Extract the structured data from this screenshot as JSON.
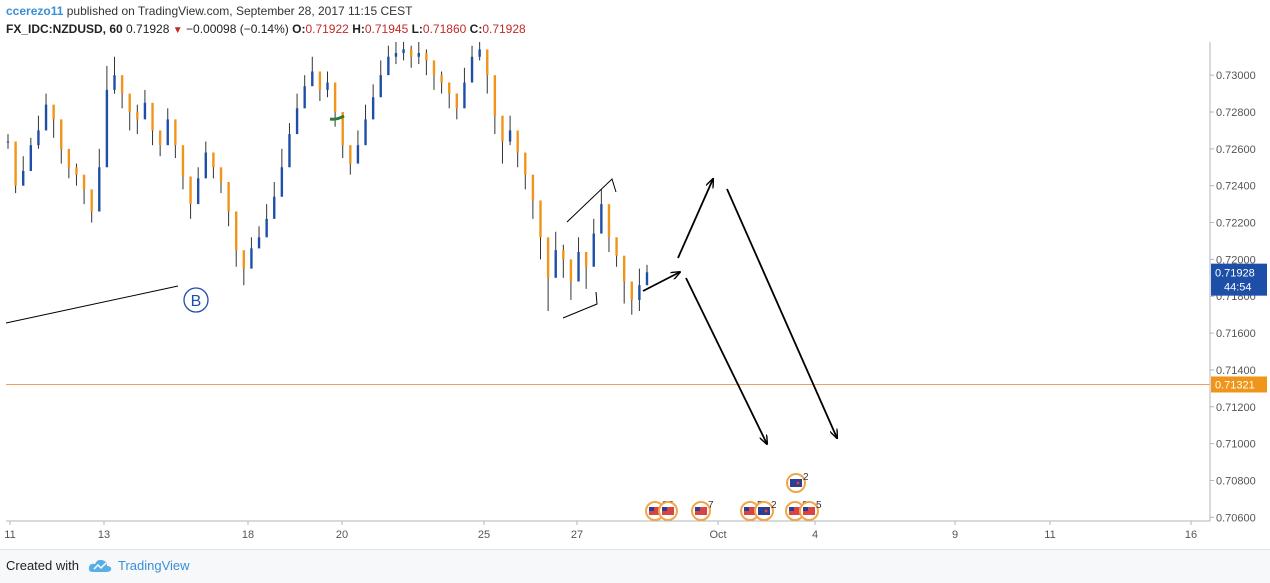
{
  "header": {
    "author": "ccerezo11",
    "published": "published on TradingView.com, September 28, 2017 11:15 CEST",
    "symbol": "FX_IDC:NZDUSD, 60",
    "last": "0.71928",
    "change": "−0.00098 (−0.14%)",
    "open_label": "O:",
    "open": "0.71922",
    "high_label": "H:",
    "high": "0.71945",
    "low_label": "L:",
    "low": "0.71860",
    "close_label": "C:",
    "close": "0.71928"
  },
  "footer": {
    "created": "Created with",
    "brand": "TradingView"
  },
  "chart_data": {
    "type": "candlestick",
    "ylim": [
      0.7058,
      0.7318
    ],
    "y_ticks": [
      "0.73000",
      "0.72800",
      "0.72600",
      "0.72400",
      "0.72200",
      "0.72000",
      "0.71800",
      "0.71600",
      "0.71400",
      "0.71200",
      "0.71000",
      "0.70800",
      "0.70600"
    ],
    "x_ticks": [
      "11",
      "13",
      "18",
      "20",
      "25",
      "27",
      "Oct",
      "4",
      "9",
      "11",
      "16"
    ],
    "price_labels": {
      "last_price": "0.71928",
      "countdown": "44:54",
      "horizontal_level": "0.71321"
    },
    "wave_label": "B",
    "event_badges": [
      "37",
      "7",
      "5",
      "2",
      "2",
      "2",
      "5"
    ],
    "colors": {
      "up": "#1e4fa8",
      "down": "#f0951a",
      "level_line": "#f0a060",
      "label_blue": "#1e4fa8",
      "label_orange": "#f0951a",
      "badge": "#f2a64a"
    },
    "price_path": [
      [
        0.7264,
        0.7268,
        0.726
      ],
      [
        0.724,
        0.725,
        0.7236
      ],
      [
        0.7248,
        0.7256,
        0.7244
      ],
      [
        0.7262,
        0.7266,
        0.7255
      ],
      [
        0.727,
        0.7278,
        0.726
      ],
      [
        0.7284,
        0.729,
        0.7278
      ],
      [
        0.7276,
        0.728,
        0.7266
      ],
      [
        0.726,
        0.7266,
        0.7252
      ],
      [
        0.725,
        0.7256,
        0.7244
      ],
      [
        0.7246,
        0.7252,
        0.724
      ],
      [
        0.7238,
        0.7244,
        0.723
      ],
      [
        0.7226,
        0.7232,
        0.722
      ],
      [
        0.725,
        0.726,
        0.724
      ],
      [
        0.7292,
        0.7305,
        0.7285
      ],
      [
        0.73,
        0.731,
        0.729
      ],
      [
        0.729,
        0.7298,
        0.7282
      ],
      [
        0.728,
        0.7288,
        0.727
      ],
      [
        0.7276,
        0.7284,
        0.7268
      ],
      [
        0.7285,
        0.7292,
        0.7278
      ],
      [
        0.727,
        0.7276,
        0.7262
      ],
      [
        0.7262,
        0.7268,
        0.7256
      ],
      [
        0.7276,
        0.7282,
        0.727
      ],
      [
        0.7262,
        0.7268,
        0.7255
      ],
      [
        0.7245,
        0.7252,
        0.7238
      ],
      [
        0.723,
        0.7236,
        0.7222
      ],
      [
        0.7244,
        0.725,
        0.7236
      ],
      [
        0.7258,
        0.7264,
        0.725
      ],
      [
        0.725,
        0.7256,
        0.7244
      ],
      [
        0.7242,
        0.7248,
        0.7236
      ],
      [
        0.7226,
        0.7232,
        0.7218
      ],
      [
        0.7205,
        0.7214,
        0.7196
      ],
      [
        0.7195,
        0.72,
        0.7186
      ],
      [
        0.7206,
        0.7212,
        0.72
      ],
      [
        0.7212,
        0.7218,
        0.7206
      ],
      [
        0.7222,
        0.723,
        0.7214
      ],
      [
        0.7234,
        0.7242,
        0.7228
      ],
      [
        0.725,
        0.726,
        0.724
      ],
      [
        0.7268,
        0.7274,
        0.726
      ],
      [
        0.7282,
        0.729,
        0.7274
      ],
      [
        0.7294,
        0.73,
        0.7286
      ],
      [
        0.7302,
        0.731,
        0.7296
      ],
      [
        0.7292,
        0.73,
        0.7286
      ],
      [
        0.7296,
        0.7302,
        0.7288
      ],
      [
        0.728,
        0.7288,
        0.7272
      ],
      [
        0.7262,
        0.727,
        0.7255
      ],
      [
        0.7252,
        0.7258,
        0.7246
      ],
      [
        0.7262,
        0.727,
        0.7256
      ],
      [
        0.7276,
        0.7284,
        0.727
      ],
      [
        0.7288,
        0.7295,
        0.7282
      ],
      [
        0.73,
        0.7308,
        0.7294
      ],
      [
        0.731,
        0.7316,
        0.7302
      ],
      [
        0.7312,
        0.7318,
        0.7306
      ],
      [
        0.7314,
        0.7318,
        0.7308
      ],
      [
        0.731,
        0.7316,
        0.7304
      ],
      [
        0.7312,
        0.7318,
        0.7306
      ],
      [
        0.7308,
        0.7314,
        0.73
      ],
      [
        0.73,
        0.7306,
        0.7292
      ],
      [
        0.7296,
        0.7302,
        0.729
      ],
      [
        0.729,
        0.7296,
        0.7282
      ],
      [
        0.7282,
        0.729,
        0.7276
      ],
      [
        0.7296,
        0.7304,
        0.7288
      ],
      [
        0.731,
        0.7316,
        0.7302
      ],
      [
        0.7314,
        0.7318,
        0.7308
      ],
      [
        0.73,
        0.731,
        0.729
      ],
      [
        0.7278,
        0.7286,
        0.7268
      ],
      [
        0.7264,
        0.7272,
        0.7252
      ],
      [
        0.727,
        0.7278,
        0.7262
      ],
      [
        0.7258,
        0.7266,
        0.725
      ],
      [
        0.7246,
        0.7254,
        0.7238
      ],
      [
        0.7232,
        0.724,
        0.7222
      ],
      [
        0.7212,
        0.722,
        0.72
      ],
      [
        0.719,
        0.7198,
        0.7172
      ],
      [
        0.7205,
        0.7215,
        0.7196
      ],
      [
        0.72,
        0.7208,
        0.719
      ],
      [
        0.7188,
        0.7196,
        0.7178
      ],
      [
        0.7204,
        0.7212,
        0.7194
      ],
      [
        0.7196,
        0.7204,
        0.7184
      ],
      [
        0.7214,
        0.7222,
        0.72
      ],
      [
        0.723,
        0.7238,
        0.7218
      ],
      [
        0.7212,
        0.722,
        0.7204
      ],
      [
        0.7202,
        0.721,
        0.7196
      ],
      [
        0.7188,
        0.7196,
        0.7176
      ],
      [
        0.7178,
        0.7186,
        0.717
      ],
      [
        0.7186,
        0.7195,
        0.7172
      ],
      [
        0.7193,
        0.7197,
        0.7186
      ]
    ]
  }
}
